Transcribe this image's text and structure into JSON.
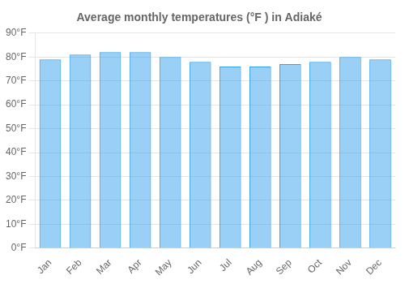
{
  "chart_data": {
    "type": "bar",
    "title": "Average monthly temperatures (°F ) in Adiaké",
    "categories": [
      "Jan",
      "Feb",
      "Mar",
      "Apr",
      "May",
      "Jun",
      "Jul",
      "Aug",
      "Sep",
      "Oct",
      "Nov",
      "Dec"
    ],
    "values": [
      79,
      81,
      82,
      82,
      80,
      78,
      76,
      76,
      77,
      78,
      80,
      79
    ],
    "ylim": [
      0,
      90
    ],
    "yticks": [
      {
        "value": 0,
        "label": "0°F"
      },
      {
        "value": 10,
        "label": "10°F"
      },
      {
        "value": 20,
        "label": "20°F"
      },
      {
        "value": 30,
        "label": "30°F"
      },
      {
        "value": 40,
        "label": "40°F"
      },
      {
        "value": 50,
        "label": "50°F"
      },
      {
        "value": 60,
        "label": "60°F"
      },
      {
        "value": 70,
        "label": "70°F"
      },
      {
        "value": 80,
        "label": "80°F"
      },
      {
        "value": 90,
        "label": "90°F"
      }
    ],
    "grid": true
  }
}
